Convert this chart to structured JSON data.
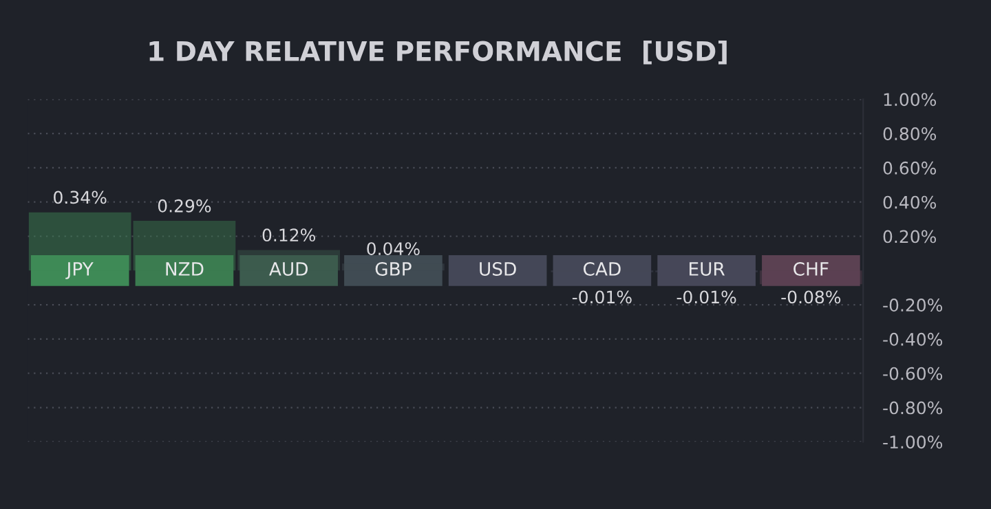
{
  "chart_data": {
    "type": "bar",
    "title": "1 DAY RELATIVE PERFORMANCE  [USD]",
    "categories": [
      "JPY",
      "NZD",
      "AUD",
      "GBP",
      "USD",
      "CAD",
      "EUR",
      "CHF"
    ],
    "values": [
      0.34,
      0.29,
      0.12,
      0.04,
      0,
      -0.01,
      -0.01,
      -0.08
    ],
    "colors": [
      "#3e8a56",
      "#3b7c50",
      "#3c5b4e",
      "#404b53",
      "#444757",
      "#444757",
      "#464758",
      "#5b4152"
    ],
    "value_labels": [
      "0.34%",
      "0.29%",
      "0.12%",
      "0.04%",
      null,
      "-0.01%",
      "-0.01%",
      "-0.08%"
    ],
    "ylim": [
      -1.0,
      1.0
    ],
    "yticks": [
      {
        "value": 1.0,
        "label": "1.00%"
      },
      {
        "value": 0.8,
        "label": "0.80%"
      },
      {
        "value": 0.6,
        "label": "0.60%"
      },
      {
        "value": 0.4,
        "label": "0.40%"
      },
      {
        "value": 0.2,
        "label": "0.20%"
      },
      {
        "value": -0.2,
        "label": "-0.20%"
      },
      {
        "value": -0.4,
        "label": "-0.40%"
      },
      {
        "value": -0.6,
        "label": "-0.60%"
      },
      {
        "value": -0.8,
        "label": "-0.80%"
      },
      {
        "value": -1.0,
        "label": "-1.00%"
      }
    ],
    "grid": "y"
  }
}
